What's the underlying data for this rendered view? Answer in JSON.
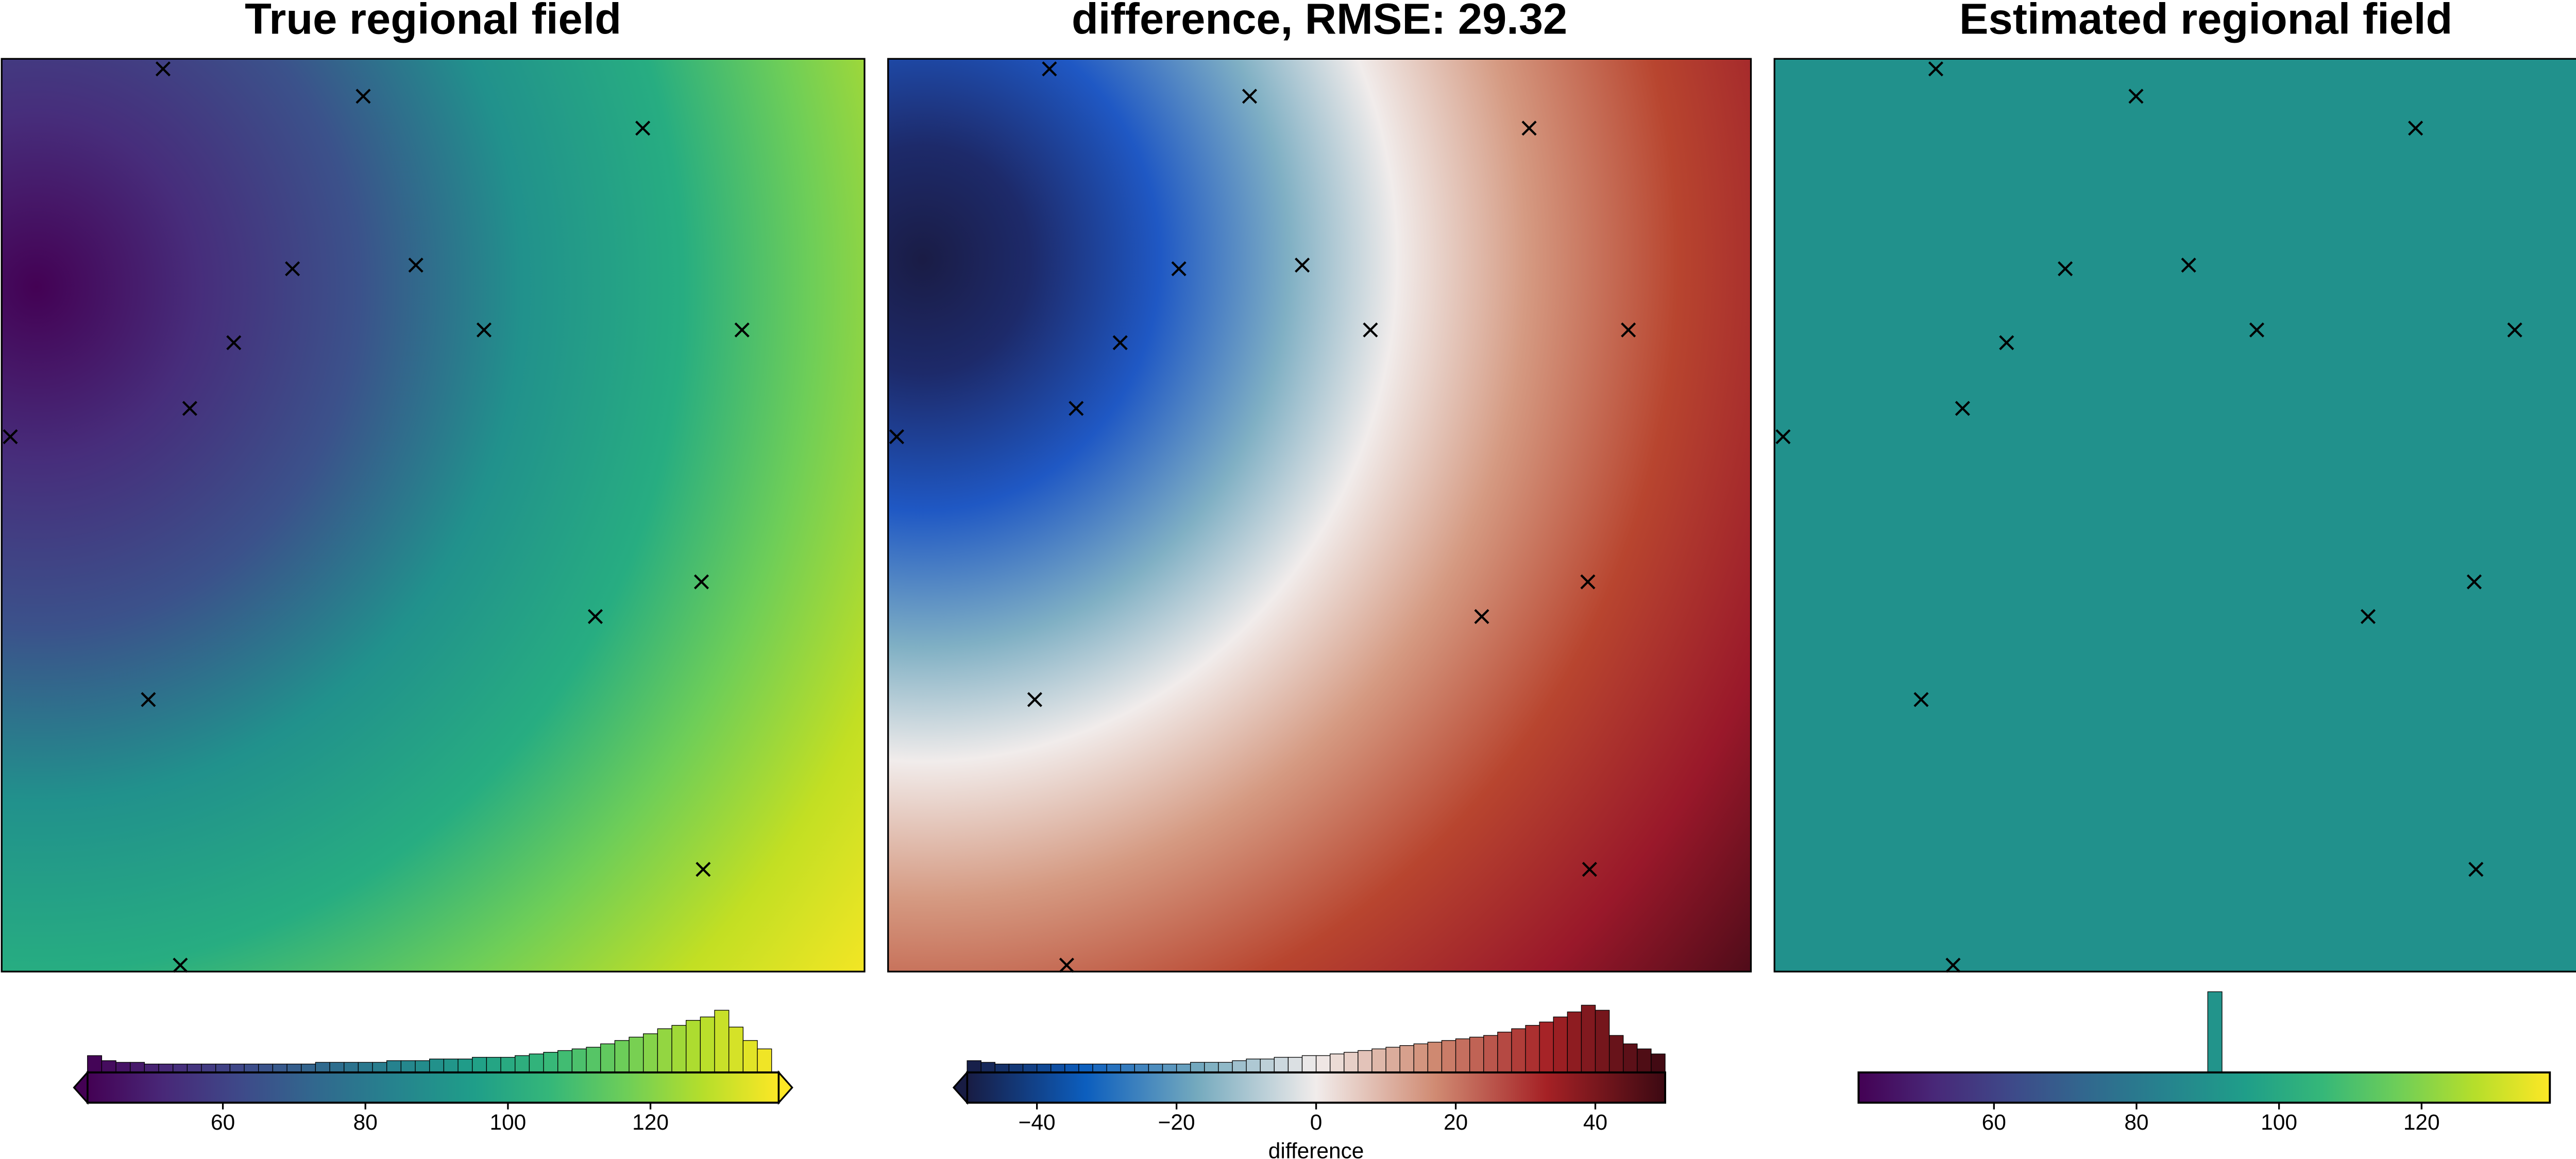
{
  "chart_data": [
    {
      "type": "heatmap",
      "title": "True regional field",
      "colormap": "viridis",
      "points": {
        "x": [
          0.187,
          0.419,
          0.743,
          0.337,
          0.48,
          0.269,
          0.559,
          0.858,
          0.218,
          0.01,
          0.811,
          0.688,
          0.17,
          0.813,
          0.207
        ],
        "y": [
          0.989,
          0.959,
          0.924,
          0.77,
          0.774,
          0.689,
          0.703,
          0.703,
          0.617,
          0.586,
          0.427,
          0.389,
          0.298,
          0.112,
          0.007
        ]
      },
      "xlim": [
        0,
        1
      ],
      "ylim": [
        0,
        1
      ],
      "colorbar": {
        "xlim": [
          41,
          138
        ],
        "extend": "both",
        "xticks": [
          60,
          80,
          100,
          120
        ]
      },
      "histogram": {
        "bins": [
          41,
          43,
          45,
          47,
          49,
          51,
          53,
          55,
          57,
          59,
          61,
          63,
          65,
          67,
          69,
          71,
          73,
          75,
          77,
          79,
          81,
          83,
          85,
          87,
          89,
          91,
          93,
          95,
          97,
          99,
          101,
          103,
          105,
          107,
          109,
          111,
          113,
          115,
          117,
          119,
          121,
          123,
          125,
          127,
          129,
          131,
          133,
          135,
          137
        ],
        "counts": [
          10,
          7,
          6,
          6,
          5,
          5,
          5,
          5,
          5,
          5,
          5,
          5,
          5,
          5,
          5,
          5,
          6,
          6,
          6,
          6,
          6,
          7,
          7,
          7,
          8,
          8,
          8,
          9,
          9,
          9,
          10,
          11,
          12,
          13,
          14,
          15,
          17,
          19,
          21,
          23,
          26,
          28,
          31,
          33,
          37,
          27,
          19,
          14
        ]
      }
    },
    {
      "type": "heatmap",
      "title": "difference, RMSE: 29.32",
      "colormap": "balance",
      "points": {
        "x": [
          0.187,
          0.419,
          0.743,
          0.337,
          0.48,
          0.269,
          0.559,
          0.858,
          0.218,
          0.01,
          0.811,
          0.688,
          0.17,
          0.813,
          0.207
        ],
        "y": [
          0.989,
          0.959,
          0.924,
          0.77,
          0.774,
          0.689,
          0.703,
          0.703,
          0.617,
          0.586,
          0.427,
          0.389,
          0.298,
          0.112,
          0.007
        ]
      },
      "xlim": [
        0,
        1
      ],
      "ylim": [
        0,
        1
      ],
      "colorbar": {
        "xlim": [
          -50,
          50
        ],
        "extend": "min",
        "xlabel": "difference",
        "xticks": [
          {
            "value": -40,
            "label": "−40"
          },
          {
            "value": -20,
            "label": "−20"
          },
          0,
          20,
          40
        ]
      },
      "histogram": {
        "bins": [
          -50,
          -48,
          -46,
          -44,
          -42,
          -40,
          -38,
          -36,
          -34,
          -32,
          -30,
          -28,
          -26,
          -24,
          -22,
          -20,
          -18,
          -16,
          -14,
          -12,
          -10,
          -8,
          -6,
          -4,
          -2,
          0,
          2,
          4,
          6,
          8,
          10,
          12,
          14,
          16,
          18,
          20,
          22,
          24,
          26,
          28,
          30,
          32,
          34,
          36,
          38,
          40,
          42,
          44,
          46,
          48,
          50
        ],
        "counts": [
          7,
          6,
          5,
          5,
          5,
          5,
          5,
          5,
          5,
          5,
          5,
          5,
          5,
          5,
          5,
          5,
          6,
          6,
          6,
          7,
          8,
          8,
          9,
          9,
          10,
          10,
          11,
          12,
          13,
          14,
          15,
          16,
          17,
          18,
          19,
          20,
          21,
          22,
          24,
          26,
          28,
          30,
          33,
          36,
          40,
          37,
          22,
          17,
          14,
          11
        ]
      }
    },
    {
      "type": "heatmap",
      "title": "Estimated regional field",
      "colormap": "viridis",
      "points": {
        "x": [
          0.187,
          0.419,
          0.743,
          0.337,
          0.48,
          0.269,
          0.559,
          0.858,
          0.218,
          0.01,
          0.811,
          0.688,
          0.17,
          0.813,
          0.207
        ],
        "y": [
          0.989,
          0.959,
          0.924,
          0.77,
          0.774,
          0.689,
          0.703,
          0.703,
          0.617,
          0.586,
          0.427,
          0.389,
          0.298,
          0.112,
          0.007
        ]
      },
      "xlim": [
        0,
        1
      ],
      "ylim": [
        0,
        1
      ],
      "colorbar": {
        "xlim": [
          41,
          138
        ],
        "extend": "neither",
        "xticks": [
          60,
          80,
          100,
          120
        ]
      },
      "histogram": {
        "bins": [
          90,
          92
        ],
        "counts": [
          48
        ]
      }
    }
  ]
}
